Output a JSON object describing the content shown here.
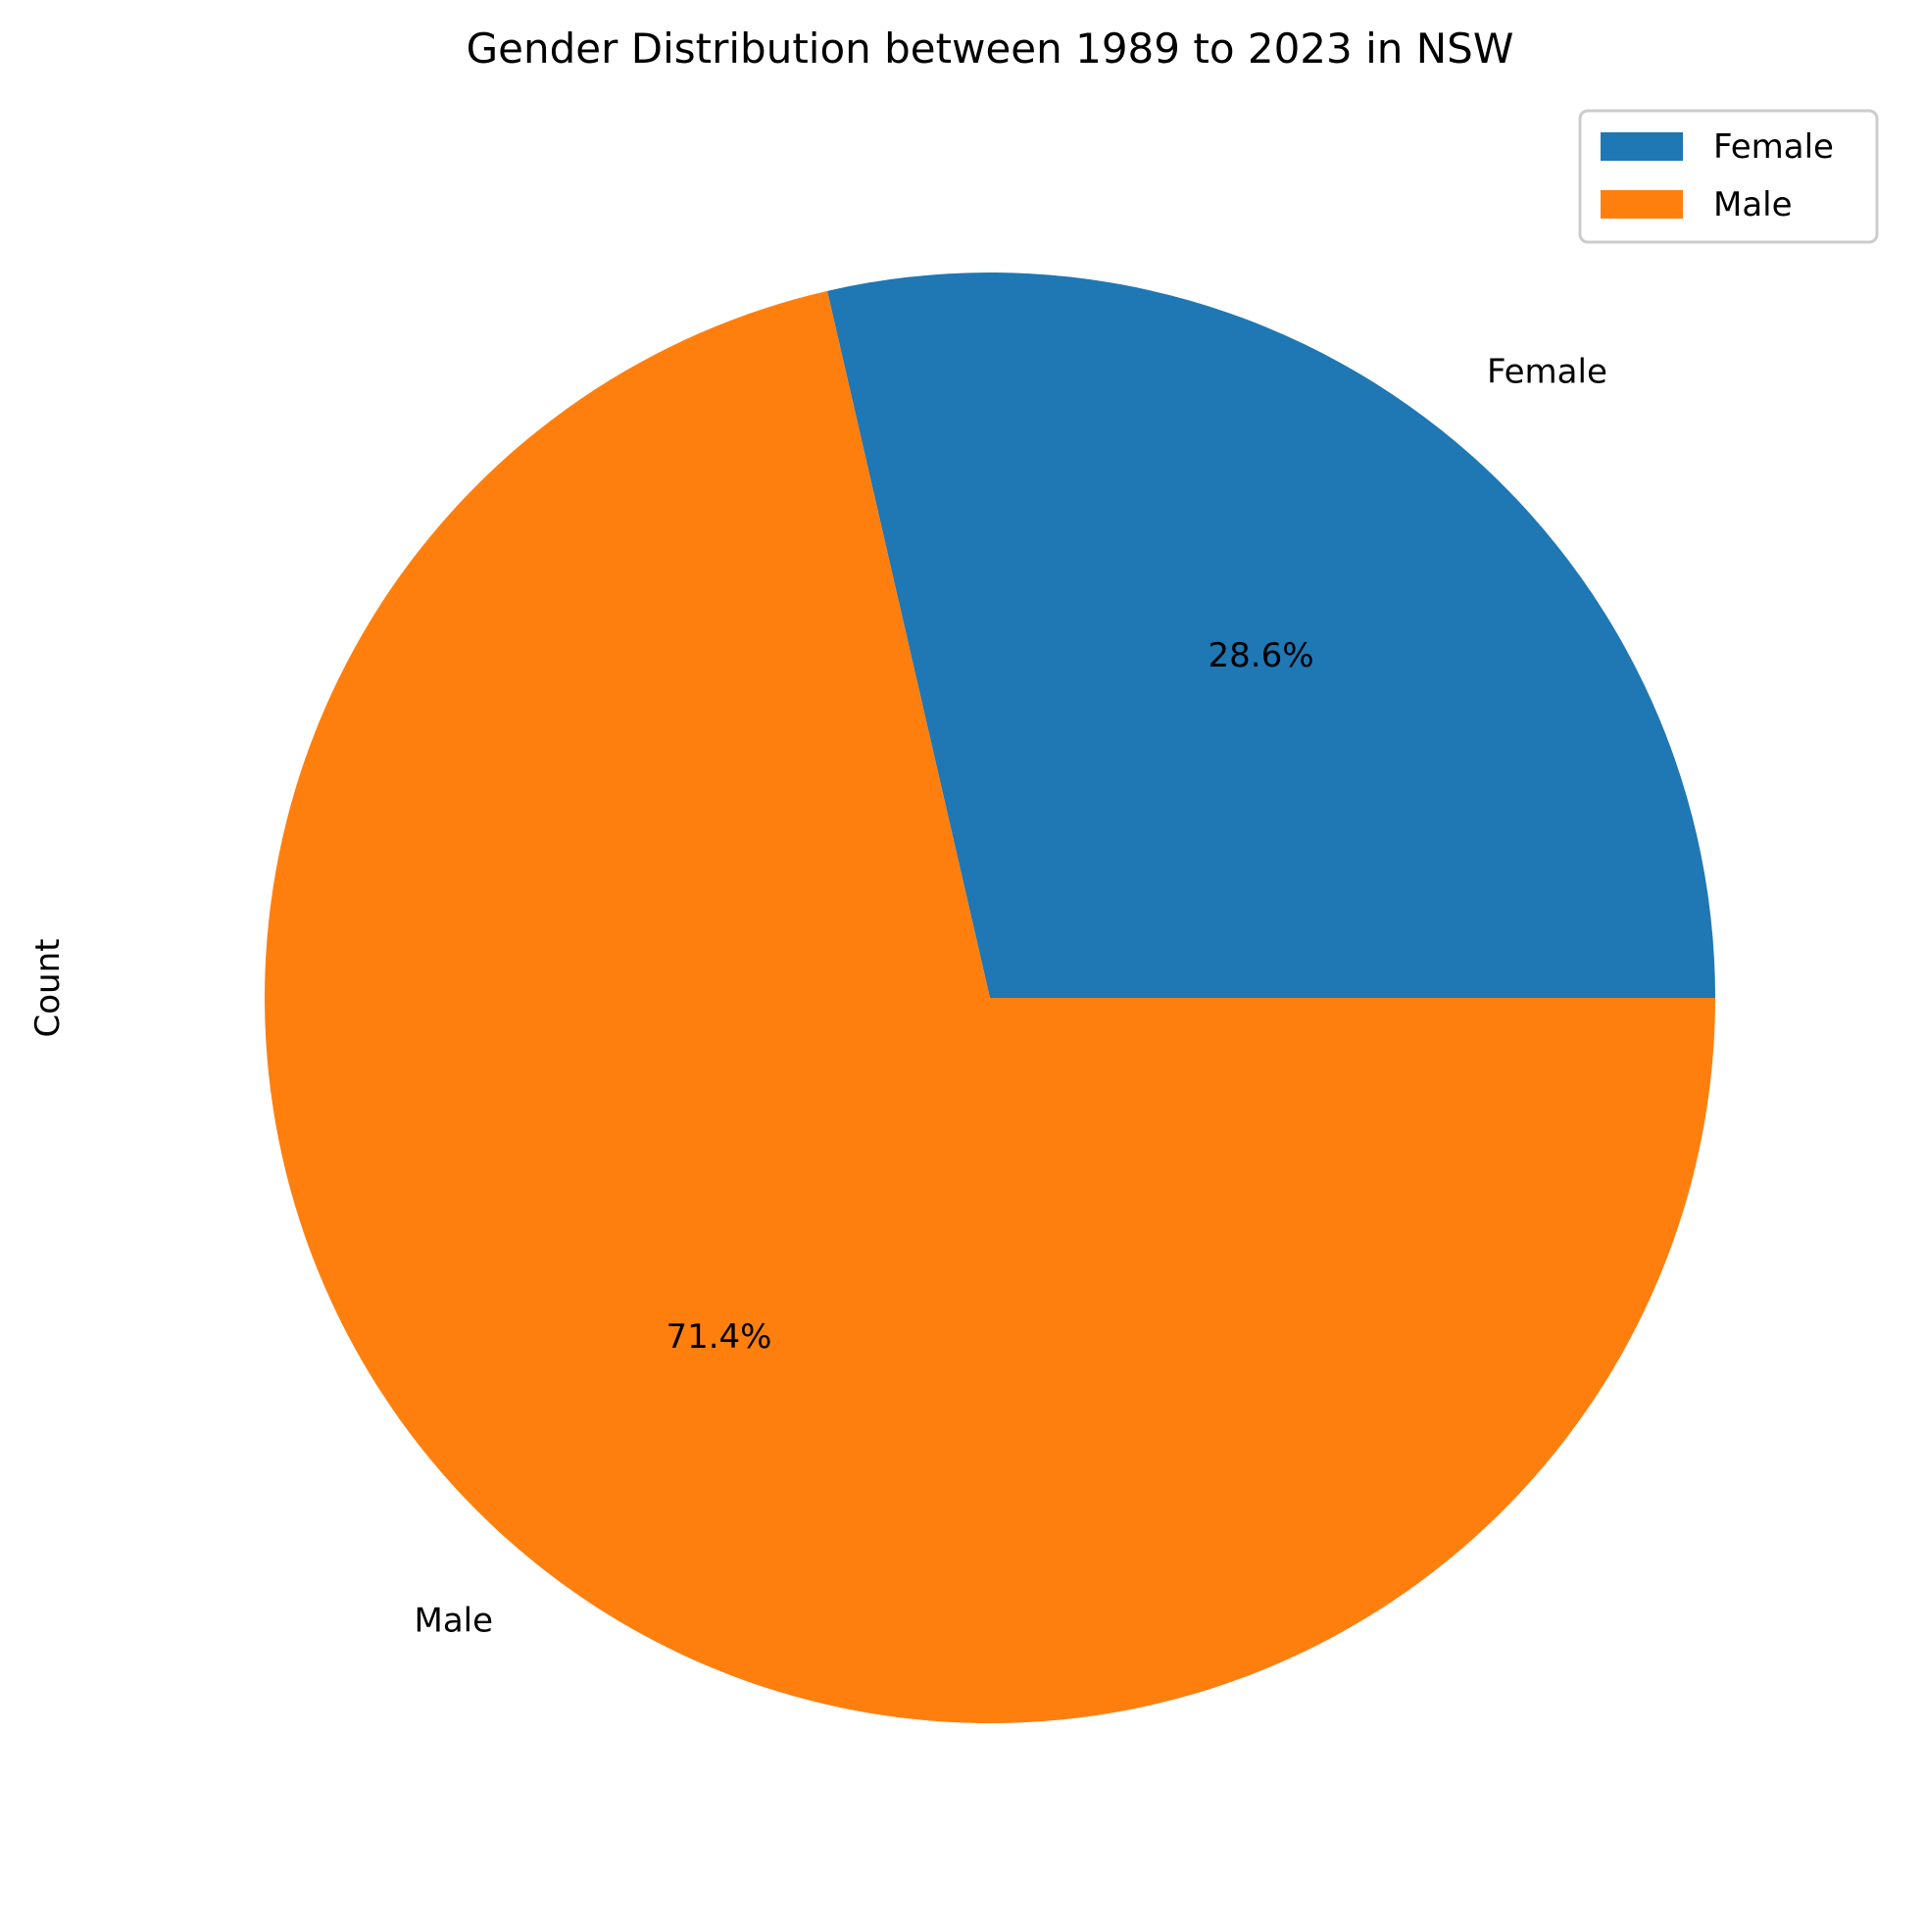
{
  "chart_data": {
    "type": "pie",
    "title": "Gender Distribution between 1989 to 2023 in NSW",
    "ylabel": "Count",
    "slices": [
      {
        "label": "Female",
        "percent": 28.6,
        "percent_label": "28.6%",
        "color": "#1f77b4"
      },
      {
        "label": "Male",
        "percent": 71.4,
        "percent_label": "71.4%",
        "color": "#ff7f0e"
      }
    ],
    "start_angle_deg": 0,
    "direction": "counterclockwise",
    "legend": {
      "position": "top-right",
      "entries": [
        {
          "label": "Female",
          "color": "#1f77b4"
        },
        {
          "label": "Male",
          "color": "#ff7f0e"
        }
      ]
    }
  }
}
